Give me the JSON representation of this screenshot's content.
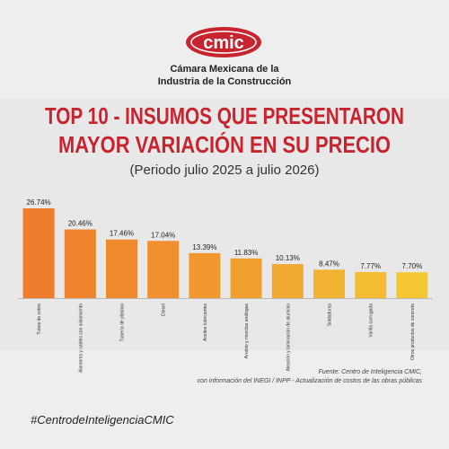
{
  "logo": "cmic",
  "org_name": [
    "Cámara Mexicana de la",
    "Industria de la Construcción"
  ],
  "chart_data": {
    "type": "bar",
    "title": [
      "TOP 10 - INSUMOS QUE PRESENTARON",
      "MAYOR VARIACIÓN EN SU PRECIO"
    ],
    "subtitle": "(Periodo julio 2025 a julio 2026)",
    "categories": [
      "Tubos de cobre",
      "Alambres y cables con aislamiento",
      "Tubería de plástico",
      "Diesel",
      "Aceites lubricantes",
      "Arrabio y mezclas análogas",
      "Aleación y laminación de aluminio",
      "Soldaduras",
      "Varilla corrugada",
      "Otros productos de concreto"
    ],
    "values": [
      26.74,
      20.46,
      17.46,
      17.04,
      13.39,
      11.83,
      10.13,
      8.47,
      7.77,
      7.7
    ],
    "value_labels": [
      "26.74%",
      "20.46%",
      "17.46%",
      "17.04%",
      "13.39%",
      "11.83%",
      "10.13%",
      "8.47%",
      "7.77%",
      "7.70%"
    ],
    "colors": [
      "#ee7d2d",
      "#ef832d",
      "#ef892e",
      "#f08f2f",
      "#f1982f",
      "#f1a030",
      "#f2a931",
      "#f2b332",
      "#f3bc33",
      "#f4c634"
    ],
    "source": [
      "Fuente: Centro de Inteligencia CMIC,",
      "con información del INEGI / INPP - Actualización de costos de las obras públicas"
    ]
  },
  "hashtag": "#CentrodeInteligenciaCMIC"
}
